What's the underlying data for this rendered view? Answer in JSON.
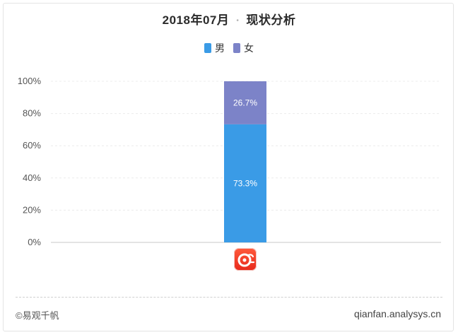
{
  "title": {
    "date": "2018年07月",
    "separator": "•",
    "subject": "现状分析"
  },
  "legend": [
    {
      "label": "男",
      "color": "#3a9be6"
    },
    {
      "label": "女",
      "color": "#7c83c8"
    }
  ],
  "chart_data": {
    "type": "bar",
    "stacked": true,
    "categories": [
      "app"
    ],
    "series": [
      {
        "name": "男",
        "values": [
          73.3
        ],
        "label": "73.3%",
        "color": "#3a9be6"
      },
      {
        "name": "女",
        "values": [
          26.7
        ],
        "label": "26.7%",
        "color": "#7c83c8"
      }
    ],
    "ylim": [
      0,
      100
    ],
    "yticks": [
      "0%",
      "20%",
      "40%",
      "60%",
      "80%",
      "100%"
    ],
    "grid": true,
    "legend_position": "top-center",
    "x_category_icon": "qianfan-app-icon"
  },
  "footer": {
    "copyright": "©易观千帆",
    "site": "qianfan.analysys.cn"
  }
}
